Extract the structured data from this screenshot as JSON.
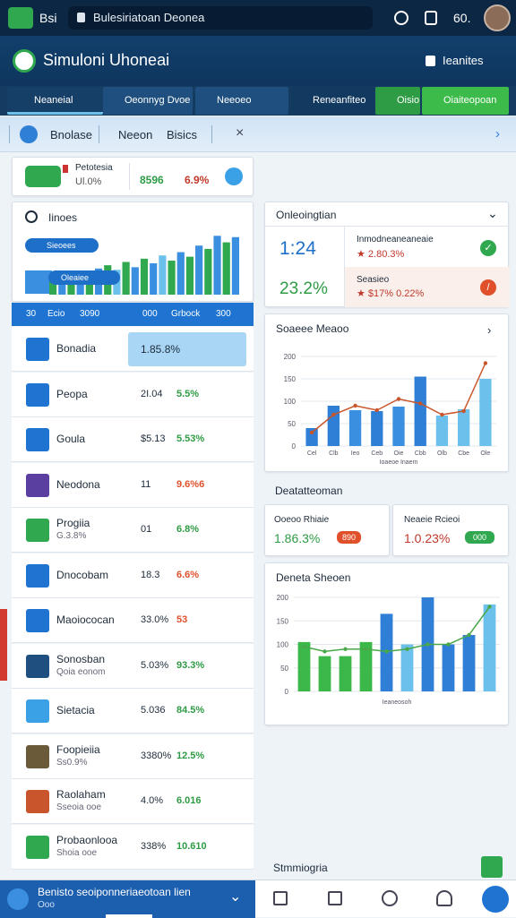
{
  "browser": {
    "tab_label": "Bsi",
    "url": "Bulesiriatoan Deonea",
    "zoom": "60."
  },
  "header": {
    "title": "Simuloni Uhoneai",
    "action": "Ieanites"
  },
  "tabs": [
    "Neaneial",
    "Oeonnyg Dvoe",
    "Neeoeo",
    "Reneanfiteo",
    "Oisio",
    "Oiaiteopoan"
  ],
  "filters": [
    "Bnolase",
    "Neeon",
    "Bisics"
  ],
  "summary": {
    "label": "Petotesia",
    "sub": "Ul.0%",
    "value": "8596",
    "change": "6.9%"
  },
  "panel": {
    "title": "Iinoes",
    "badges": [
      "Sieoees",
      "Oleaiee"
    ],
    "columns": [
      "30",
      "Ecio",
      "3090",
      "000",
      "Grbock",
      "300"
    ]
  },
  "list": [
    {
      "name": "Bonadia",
      "value": "1.85.8%"
    },
    {
      "name": "Peopa",
      "value": "2I.04",
      "change": "5.5%",
      "color": "#2e9b45"
    },
    {
      "name": "Goula",
      "value": "$5.13",
      "change": "5.53%",
      "color": "#2e9b45"
    },
    {
      "name": "Neodona",
      "value": "11",
      "change": "9.6%6",
      "color": "#e0512b"
    },
    {
      "name": "Progiia",
      "sub": "G.3.8%",
      "value": "01",
      "change": "6.8%",
      "color": "#2e9b45"
    },
    {
      "name": "Dnocobam",
      "value": "18.3",
      "change": "6.6%",
      "color": "#e0512b"
    },
    {
      "name": "Maoiococan",
      "value": "33.0%",
      "change": "53",
      "color": "#e0512b"
    },
    {
      "name": "Sonosban",
      "sub": "Qoia eonom",
      "value": "5.03%",
      "change": "93.3%",
      "color": "#2e9b45"
    },
    {
      "name": "Sietacia",
      "value": "5.036",
      "change": "84.5%",
      "color": "#2e9b45"
    },
    {
      "name": "Foopieiia",
      "sub": "Ss0.9%",
      "value": "3380%",
      "change": "12.5%",
      "color": "#2e9b45"
    },
    {
      "name": "Raolaham",
      "sub": "Sseoia ooe",
      "value": "4.0%",
      "change": "6.016",
      "color": "#2e9b45"
    },
    {
      "name": "Probaonlooa",
      "sub": "Shoia ooe",
      "value": "338%",
      "change": "10.610",
      "color": "#2e9b45"
    }
  ],
  "overview": {
    "title": "Onleoingtian",
    "big1": "1:24",
    "big2": "23.2%",
    "row1_label": "Inmodneaneaneaie",
    "row1_value": "★ 2.80.3%",
    "row2_label": "Seasieo",
    "row2_value": "★ $17% 0.22%"
  },
  "section": {
    "title": "Deatatteoman",
    "card1_label": "Ooeoo Rhiaie",
    "card1_value": "1.86.3%",
    "card1_badge": "890",
    "card2_label": "Neaeie Rcieoi",
    "card2_value": "1.0.23%",
    "card2_badge": "000"
  },
  "footer_label": "Stmmiogria",
  "bottom": {
    "title": "Benisto seoiponneriaeotoan lien",
    "sub": "Ooo"
  },
  "chart_data": [
    {
      "type": "bar",
      "title": "Soaeee Meaoo",
      "xlabel": "Ioaeoe Inaem",
      "categories": [
        "Cel",
        "Clb",
        "Ieo",
        "Ceb",
        "Oie",
        "Cbb",
        "Olb",
        "Cbe",
        "Ole"
      ],
      "values": [
        40,
        90,
        80,
        78,
        88,
        155,
        68,
        82,
        150
      ],
      "colors": [
        "#2f7fd6",
        "#2f7fd6",
        "#3b8fe0",
        "#2f7fd6",
        "#3b8fe0",
        "#2f7fd6",
        "#6cc0ec",
        "#6cc0ec",
        "#6cc0ec"
      ],
      "line_values": [
        30,
        70,
        90,
        80,
        105,
        95,
        70,
        78,
        185
      ],
      "line_color": "#c8552b",
      "ylim": [
        0,
        200
      ],
      "yticks": [
        0,
        50,
        100,
        150,
        200
      ],
      "grid": true
    },
    {
      "type": "bar",
      "title": "Deneta Sheoen",
      "xlabel": "Ieaneosoh",
      "categories": [
        null,
        null,
        null,
        null,
        null,
        null,
        null,
        null,
        null,
        null
      ],
      "values": [
        105,
        75,
        75,
        105,
        165,
        100,
        200,
        100,
        120,
        185
      ],
      "colors": [
        "#3cb84a",
        "#3cb84a",
        "#3cb84a",
        "#3cb84a",
        "#2f7fd6",
        "#6cc0ec",
        "#2f7fd6",
        "#2f7fd6",
        "#2f7fd6",
        "#6cc0ec"
      ],
      "line_values": [
        95,
        85,
        90,
        90,
        85,
        90,
        100,
        100,
        120,
        180
      ],
      "line_color": "#4aa84a",
      "ylim": [
        0,
        200
      ],
      "yticks": [
        0,
        50,
        100,
        150,
        200
      ],
      "grid": true
    },
    {
      "type": "bar",
      "values": [
        20,
        30,
        25,
        35,
        28,
        40,
        45,
        38,
        50,
        42,
        55,
        48,
        60,
        52,
        65,
        58,
        75,
        70,
        90,
        80,
        88
      ],
      "colors": [
        "#2fa84f",
        "#3b8fe0",
        "#2fa84f",
        "#3b8fe0",
        "#2fa84f",
        "#3b8fe0",
        "#2fa84f",
        "#6cc0ec",
        "#2fa84f",
        "#3b8fe0",
        "#2fa84f",
        "#3b8fe0",
        "#6cc0ec",
        "#2fa84f",
        "#3b8fe0",
        "#2fa84f",
        "#3b8fe0",
        "#2fa84f",
        "#3b8fe0",
        "#2fa84f",
        "#3b8fe0"
      ],
      "ylim": [
        0,
        100
      ]
    }
  ]
}
